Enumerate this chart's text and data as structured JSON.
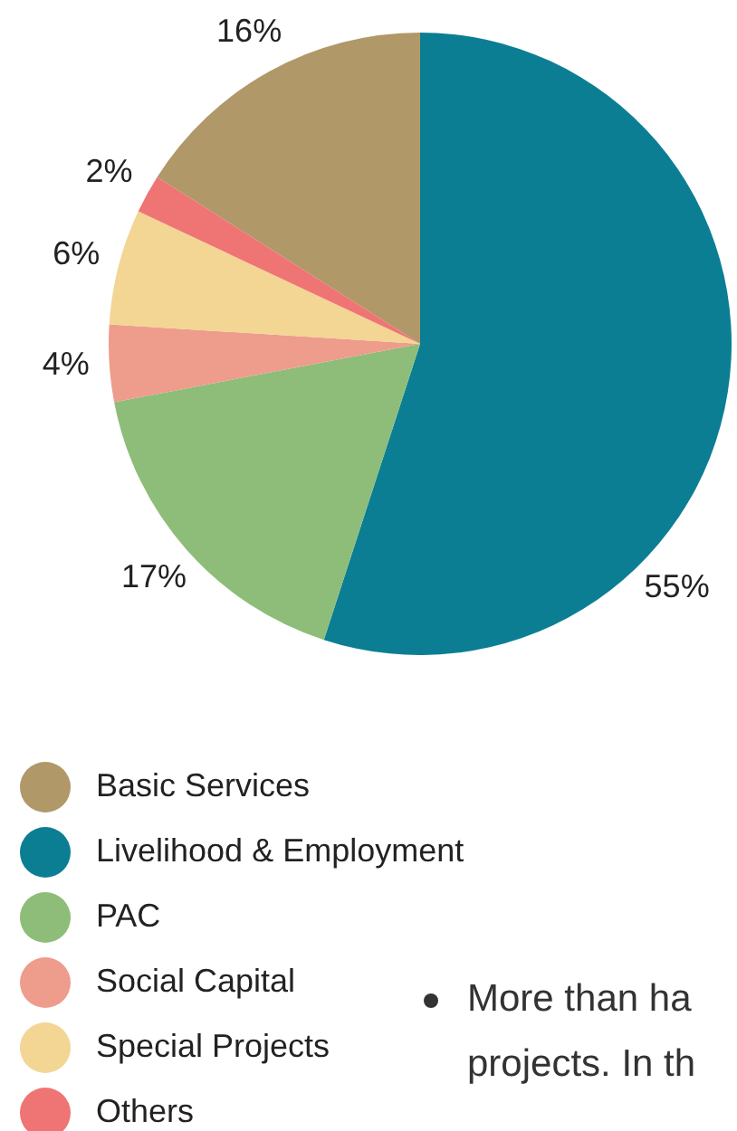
{
  "chart_data": {
    "type": "pie",
    "categories": [
      "Basic Services",
      "Livelihood & Employment",
      "PAC",
      "Social Capital",
      "Special Projects",
      "Others"
    ],
    "values": [
      16,
      55,
      17,
      4,
      6,
      2
    ],
    "colors": [
      "#b09868",
      "#0b7e94",
      "#8dbd78",
      "#ee9c8c",
      "#f3d594",
      "#ef7474"
    ],
    "value_labels": [
      "16%",
      "55%",
      "17%",
      "4%",
      "6%",
      "2%"
    ],
    "legend": "bottom left",
    "annotations": [
      "More than ha",
      "projects. In th"
    ]
  }
}
